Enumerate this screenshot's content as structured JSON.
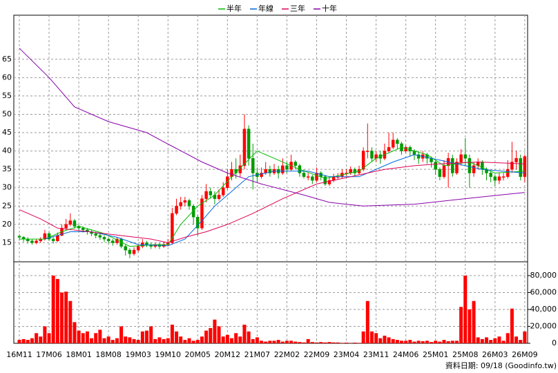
{
  "chart_data": {
    "type": "candlestick",
    "footnote": "資料日期: 09/18 (Goodinfo.tw)",
    "up_color": "#ff0000",
    "down_color": "#009900",
    "volume_color": "#ff0000",
    "grid": true,
    "legend": "top",
    "ylim": [
      10,
      77
    ],
    "yticks": [
      15,
      20,
      25,
      30,
      35,
      40,
      45,
      50,
      55,
      60,
      65
    ],
    "y2lim": [
      0,
      95500
    ],
    "y2ticks": [
      0,
      {
        "value": 20000,
        "label": "20,000"
      },
      {
        "value": 40000,
        "label": "40,000"
      },
      {
        "value": 60000,
        "label": "60,000"
      },
      {
        "value": 80000,
        "label": "80,000"
      }
    ],
    "categories": [
      "16M11",
      null,
      null,
      null,
      null,
      null,
      null,
      "17M06",
      null,
      null,
      null,
      null,
      null,
      null,
      "18M01",
      null,
      null,
      null,
      null,
      null,
      null,
      "18M08",
      null,
      null,
      null,
      null,
      null,
      null,
      "19M03",
      null,
      null,
      null,
      null,
      null,
      null,
      "19M10",
      null,
      null,
      null,
      null,
      null,
      null,
      "20M05",
      null,
      null,
      null,
      null,
      null,
      null,
      "20M12",
      null,
      null,
      null,
      null,
      null,
      null,
      "21M07",
      null,
      null,
      null,
      null,
      null,
      null,
      "22M02",
      null,
      null,
      null,
      null,
      null,
      null,
      "22M09",
      null,
      null,
      null,
      null,
      null,
      null,
      "23M04",
      null,
      null,
      null,
      null,
      null,
      null,
      "23M11",
      null,
      null,
      null,
      null,
      null,
      null,
      "24M06",
      null,
      null,
      null,
      null,
      null,
      null,
      "25M01",
      null,
      null,
      null,
      null,
      null,
      null,
      "25M08",
      null,
      null,
      null,
      null,
      null,
      null,
      "26M03",
      null,
      null,
      null,
      null,
      null,
      null,
      "26M09"
    ],
    "open": [
      16.8,
      16.5,
      16,
      15.5,
      15,
      15.5,
      16,
      17.5,
      16,
      15.5,
      17,
      19,
      20,
      21,
      19.5,
      19,
      18.5,
      18,
      17.5,
      17,
      16.5,
      16,
      15.5,
      15,
      16,
      14,
      13,
      12,
      13,
      14,
      15,
      14.5,
      14,
      14.5,
      14,
      14.5,
      15,
      23,
      25,
      26,
      26.5,
      25,
      22,
      19,
      27,
      29,
      28,
      27,
      28,
      30,
      33,
      35,
      34,
      36,
      46,
      38,
      34,
      33,
      34,
      35,
      34,
      35,
      34,
      36,
      35,
      37,
      36,
      34,
      33,
      33,
      32,
      34,
      33,
      31,
      32,
      33,
      33,
      34,
      34,
      35,
      34,
      35,
      40,
      40,
      38,
      39,
      38,
      40,
      41,
      43,
      42,
      40,
      41,
      40,
      39,
      38,
      39,
      38,
      37,
      35,
      33,
      36,
      38,
      34,
      37,
      39,
      38,
      34,
      36,
      37,
      35,
      34,
      33,
      32,
      33,
      33,
      35,
      37,
      38,
      33
    ],
    "high": [
      17.3,
      16.8,
      16.5,
      16,
      16,
      16.5,
      18.5,
      18,
      16.5,
      17.8,
      20,
      21.5,
      23,
      21.5,
      20,
      19.5,
      19,
      18.6,
      18,
      17.5,
      17,
      16.5,
      16,
      16.6,
      16.4,
      14.5,
      13.5,
      13.8,
      14.5,
      16,
      15.5,
      15,
      15,
      15,
      15.2,
      16,
      24.5,
      27,
      27.5,
      27.5,
      27,
      25.5,
      22.5,
      28,
      31,
      30,
      29,
      29.5,
      31.5,
      35,
      37,
      38,
      39,
      50,
      47,
      42,
      35.5,
      35.5,
      37,
      36,
      36.5,
      36,
      38,
      37,
      39,
      37.5,
      36.5,
      35,
      34,
      33.5,
      35.5,
      34.5,
      33.5,
      33,
      33.8,
      34,
      35,
      35,
      35.8,
      35.5,
      36,
      41,
      47.5,
      41,
      40,
      40,
      42,
      45,
      45,
      43.5,
      42.5,
      41.5,
      41.5,
      40.5,
      40,
      40,
      39.5,
      38.5,
      37.5,
      35.5,
      37.5,
      39.5,
      39,
      38,
      40.5,
      43.5,
      39,
      37,
      38,
      37.5,
      35.5,
      34.5,
      33.5,
      34,
      34,
      37.5,
      42.5,
      40,
      39,
      39
    ],
    "low": [
      15.8,
      15.2,
      14.8,
      14.5,
      14.6,
      15,
      15.6,
      15.5,
      14.8,
      15.2,
      16.8,
      18.5,
      19.5,
      18.8,
      18.2,
      17.8,
      17.2,
      16.8,
      16.2,
      15.8,
      15.2,
      14.8,
      14.2,
      14.5,
      13.5,
      11.5,
      10.8,
      11.5,
      12.5,
      13.5,
      13.8,
      13.3,
      13.5,
      13.3,
      13.6,
      14,
      14.5,
      22.5,
      24,
      25,
      24,
      20,
      17,
      18.5,
      26,
      27,
      25.5,
      26.5,
      27.5,
      29.5,
      32,
      32.5,
      33,
      35,
      36,
      29.5,
      31.5,
      32.5,
      33.5,
      33,
      33.5,
      32.5,
      33.5,
      34,
      34.5,
      35,
      33,
      32.5,
      32,
      31,
      31.5,
      32,
      30.5,
      30.5,
      31.5,
      32.3,
      32.5,
      33.2,
      33.5,
      33.3,
      33.5,
      34.5,
      38,
      37,
      37,
      36.5,
      37.5,
      39.5,
      40.5,
      40.5,
      39,
      39.5,
      38.5,
      37.5,
      36.5,
      37,
      36.5,
      35.5,
      33.5,
      32,
      32.5,
      30,
      33,
      33.5,
      36,
      36,
      30,
      33,
      35,
      33.5,
      32,
      31.5,
      30.5,
      31,
      32,
      32.5,
      34,
      35,
      32,
      31.5
    ],
    "close": [
      16.5,
      16,
      15.5,
      15,
      15.5,
      16,
      17.5,
      16,
      15.5,
      17,
      19,
      20,
      21,
      19.5,
      19,
      18.5,
      18,
      17.5,
      17,
      16.5,
      16,
      15.5,
      15,
      16,
      14,
      13,
      12,
      13,
      14,
      15,
      14.5,
      14,
      14.5,
      14,
      14.5,
      15,
      23,
      25,
      26,
      26.5,
      25,
      22,
      19,
      27,
      29,
      28,
      27,
      28,
      30,
      33,
      35,
      34,
      36,
      46,
      38,
      34,
      33,
      34,
      35,
      34,
      35,
      34,
      36,
      35,
      37,
      36,
      34,
      33,
      33,
      32,
      34,
      33,
      31,
      32,
      33,
      33,
      34,
      34,
      35,
      34,
      35,
      40,
      40,
      38,
      39,
      38,
      40,
      41,
      43,
      42,
      40,
      41,
      40,
      39,
      38,
      39,
      38,
      37,
      35,
      33,
      36,
      38,
      34,
      37,
      39,
      38,
      34,
      36,
      37,
      35,
      34,
      33,
      32,
      33,
      33,
      35,
      37,
      38,
      33,
      38.5
    ],
    "volume": [
      4000,
      5000,
      4000,
      6000,
      12000,
      8000,
      20000,
      12000,
      80000,
      76000,
      60000,
      61000,
      50000,
      25000,
      15000,
      12000,
      14000,
      6000,
      12000,
      16000,
      6000,
      8000,
      4000,
      6000,
      20000,
      8000,
      7000,
      5000,
      4000,
      14000,
      15000,
      20000,
      5000,
      7000,
      5000,
      6000,
      22000,
      14000,
      8000,
      4000,
      6000,
      3000,
      4000,
      8000,
      15000,
      18000,
      28000,
      20000,
      8000,
      10000,
      6000,
      12000,
      8000,
      22000,
      14000,
      5000,
      7000,
      3000,
      2000,
      3000,
      3000,
      4000,
      2000,
      3000,
      3000,
      2000,
      1500,
      1000,
      5000,
      1500,
      1000,
      1500,
      1000,
      1500,
      1000,
      1000,
      500,
      800,
      500,
      800,
      500,
      14000,
      50000,
      14000,
      12000,
      6000,
      9000,
      7000,
      5000,
      4000,
      3000,
      3000,
      4000,
      2000,
      3000,
      2500,
      3000,
      1500,
      3000,
      2000,
      4000,
      2500,
      3000,
      3000,
      43000,
      80000,
      40000,
      50000,
      7000,
      5000,
      7000,
      4000,
      6000,
      8000,
      3000,
      12000,
      41000,
      8000,
      4000,
      14000
    ],
    "lines": [
      {
        "name": "半年",
        "color": "#00bb00",
        "x": [
          0,
          6,
          10,
          14,
          20,
          26,
          32,
          35,
          38,
          42,
          46,
          50,
          56,
          60,
          66,
          72,
          76,
          80,
          84,
          90,
          96,
          100,
          106,
          112,
          119
        ],
        "values": [
          16,
          16,
          18,
          19.5,
          17.5,
          14,
          14.5,
          14.5,
          20,
          25,
          28,
          33,
          40,
          38,
          35,
          32.5,
          33.5,
          34.5,
          38,
          41,
          39,
          36,
          37,
          34,
          34.5
        ]
      },
      {
        "name": "年線",
        "color": "#0066dd",
        "x": [
          6,
          12,
          17,
          23,
          28,
          35,
          39,
          43,
          46,
          49,
          54,
          60,
          68,
          73,
          80,
          88,
          93,
          101,
          109,
          119
        ],
        "values": [
          16,
          18,
          18,
          16.5,
          14.5,
          14.2,
          16,
          21,
          25,
          28,
          33,
          34.5,
          34.5,
          33,
          33,
          37,
          39,
          37,
          35,
          34
        ]
      },
      {
        "name": "三年",
        "color": "#dd0055",
        "x": [
          0,
          5,
          9,
          20,
          31,
          35,
          39,
          44,
          49,
          55,
          62,
          70,
          78,
          86,
          93,
          99,
          108,
          119
        ],
        "values": [
          24,
          21.5,
          19,
          17.5,
          16,
          15,
          16.5,
          18,
          20,
          23,
          27,
          31,
          33,
          35,
          36,
          36.5,
          37,
          36.5
        ]
      },
      {
        "name": "十年",
        "color": "#8800aa",
        "x": [
          0,
          7,
          13,
          21,
          30,
          34,
          43,
          49,
          57,
          67,
          73,
          81,
          93,
          101,
          109,
          119
        ],
        "values": [
          68,
          60,
          52,
          48,
          45,
          42.5,
          37,
          34,
          31,
          28,
          26,
          25,
          25.5,
          26.5,
          27.5,
          28.7
        ]
      }
    ]
  }
}
